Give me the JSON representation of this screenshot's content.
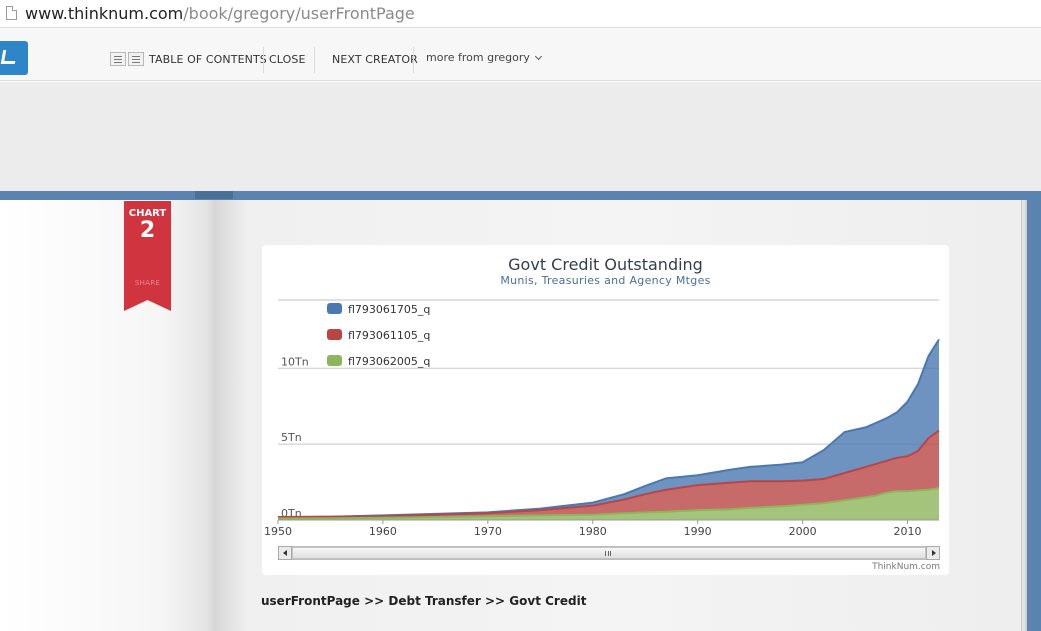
{
  "browser": {
    "url_host": "www.thinknum.com",
    "url_path": "/book/gregory/userFrontPage"
  },
  "toolbar": {
    "toc_label": "TABLE OF CONTENTS",
    "close_label": "CLOSE",
    "next_label": "NEXT CREATOR",
    "more_label": "more from gregory"
  },
  "ribbon": {
    "label": "CHART",
    "number": "2",
    "share": "SHARE"
  },
  "colors": {
    "accent": "#2e86c8",
    "ribbon": "#d0343f",
    "series_blue": "#4a78b0",
    "series_red": "#b94545",
    "series_green": "#8db55a"
  },
  "chart_data": {
    "type": "area",
    "stacked": true,
    "title": "Govt Credit Outstanding",
    "subtitle": "Munis, Treasuries and Agency Mtges",
    "credit": "ThinkNum.com",
    "xlim": [
      1950,
      2013
    ],
    "ylim": [
      0,
      14.5
    ],
    "x_ticks": [
      1950,
      1960,
      1970,
      1980,
      1990,
      2000,
      2010
    ],
    "y_ticks": [
      {
        "value": 0,
        "label": "0Tn"
      },
      {
        "value": 5,
        "label": "5Tn"
      },
      {
        "value": 10,
        "label": "10Tn"
      }
    ],
    "grid": true,
    "legend_position": "top-left",
    "x": [
      1950,
      1955,
      1960,
      1965,
      1970,
      1975,
      1980,
      1983,
      1985,
      1987,
      1990,
      1993,
      1995,
      1998,
      2000,
      2002,
      2004,
      2006,
      2007,
      2008,
      2009,
      2010,
      2011,
      2012,
      2013
    ],
    "series": [
      {
        "name": "fl793061705_q",
        "color": "#4a78b0",
        "values": [
          0.0,
          0.0,
          0.05,
          0.05,
          0.05,
          0.1,
          0.2,
          0.35,
          0.55,
          0.75,
          0.65,
          0.85,
          0.95,
          1.1,
          1.2,
          1.9,
          2.7,
          2.6,
          2.7,
          2.8,
          3.0,
          3.6,
          4.4,
          5.4,
          6.0
        ]
      },
      {
        "name": "fl793061105_q",
        "color": "#b94545",
        "values": [
          0.1,
          0.1,
          0.1,
          0.15,
          0.2,
          0.35,
          0.6,
          0.9,
          1.2,
          1.45,
          1.65,
          1.75,
          1.75,
          1.65,
          1.6,
          1.6,
          1.8,
          2.0,
          2.1,
          2.1,
          2.2,
          2.3,
          2.6,
          3.4,
          3.8
        ]
      },
      {
        "name": "fl793062005_q",
        "color": "#8db55a",
        "values": [
          0.1,
          0.12,
          0.15,
          0.2,
          0.25,
          0.3,
          0.35,
          0.45,
          0.5,
          0.55,
          0.65,
          0.7,
          0.8,
          0.9,
          1.0,
          1.1,
          1.3,
          1.5,
          1.6,
          1.8,
          1.9,
          1.9,
          1.95,
          2.0,
          2.1
        ]
      }
    ]
  },
  "scrollbar": {
    "grip": "III"
  },
  "breadcrumb": "userFrontPage >> Debt Transfer >> Govt Credit"
}
